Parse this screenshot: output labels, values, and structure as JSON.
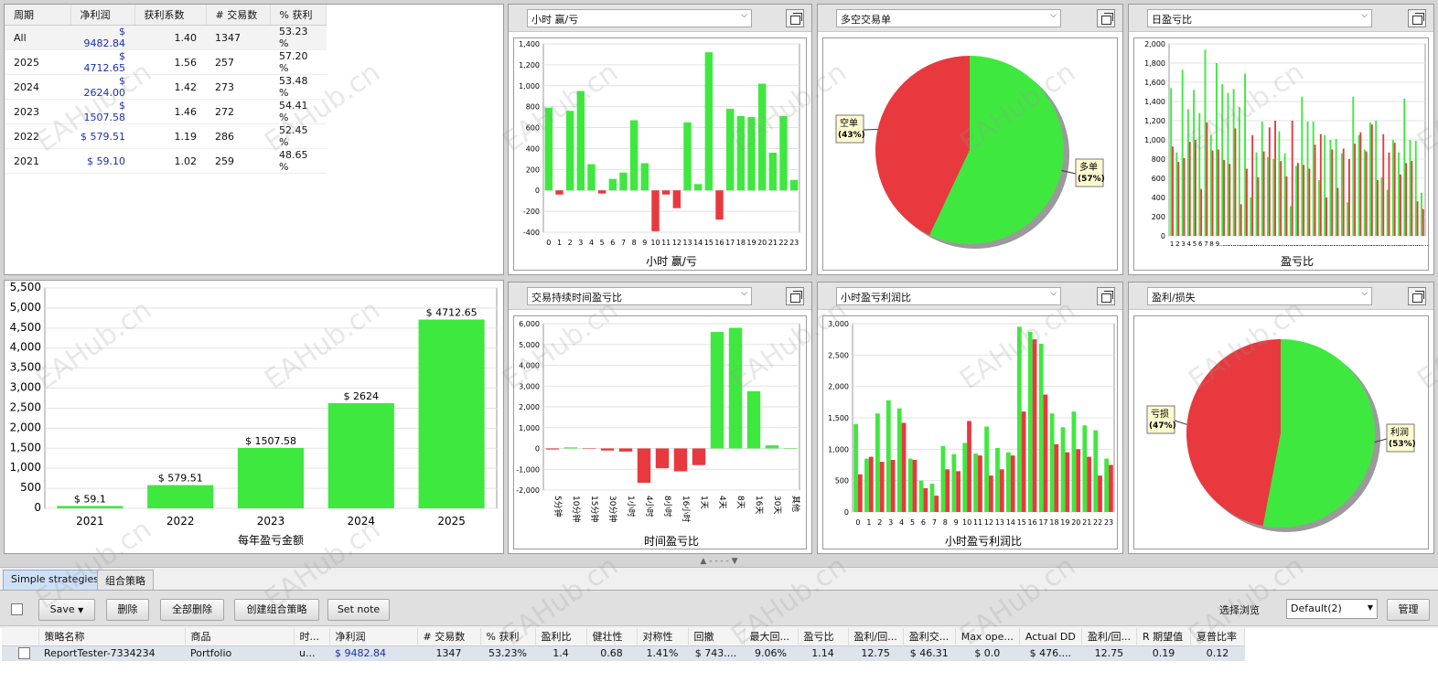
{
  "year_table": {
    "headers": [
      "周期",
      "净利润",
      "获利系数",
      "# 交易数",
      "% 获利"
    ],
    "rows": [
      [
        "All",
        "$ 9482.84",
        "1.40",
        "1347",
        "53.23 %"
      ],
      [
        "2025",
        "$ 4712.65",
        "1.56",
        "257",
        "57.20 %"
      ],
      [
        "2024",
        "$ 2624.00",
        "1.42",
        "273",
        "53.48 %"
      ],
      [
        "2023",
        "$ 1507.58",
        "1.46",
        "272",
        "54.41 %"
      ],
      [
        "2022",
        "$ 579.51",
        "1.19",
        "286",
        "52.45 %"
      ],
      [
        "2021",
        "$ 59.10",
        "1.02",
        "259",
        "48.65 %"
      ]
    ]
  },
  "panels": {
    "hourly": {
      "dropdown": "小时 赢/亏",
      "title": "小时 赢/亏"
    },
    "longshort": {
      "dropdown": "多空交易单"
    },
    "daily": {
      "dropdown": "日盈亏比",
      "title": "盈亏比"
    },
    "duration": {
      "dropdown": "交易持续时间盈亏比",
      "title": "时间盈亏比"
    },
    "hourly_pf": {
      "dropdown": "小时盈亏利润比",
      "title": "小时盈亏利润比"
    },
    "profit_loss": {
      "dropdown": "盈利/损失"
    },
    "yearly": {
      "title": "每年盈亏金额"
    }
  },
  "chart_data": [
    {
      "type": "bar",
      "title": "小时 赢/亏",
      "categories": [
        "0",
        "1",
        "2",
        "3",
        "4",
        "5",
        "6",
        "7",
        "8",
        "9",
        "10",
        "11",
        "12",
        "13",
        "14",
        "15",
        "16",
        "17",
        "18",
        "19",
        "20",
        "21",
        "22",
        "23"
      ],
      "values": [
        790,
        -40,
        760,
        950,
        250,
        -30,
        110,
        170,
        670,
        260,
        -390,
        -40,
        -170,
        650,
        60,
        1320,
        -280,
        780,
        710,
        700,
        1020,
        360,
        710,
        100
      ],
      "ylim": [
        -400,
        1400
      ],
      "yticks": [
        -400,
        -200,
        0,
        200,
        400,
        600,
        800,
        1000,
        1200,
        1400
      ],
      "ytick_labels": [
        "-400",
        "-200",
        "0",
        "200",
        "400",
        "600",
        "800",
        "1,000",
        "1,200",
        "1,400"
      ]
    },
    {
      "type": "pie",
      "slices": [
        {
          "label": "空单",
          "pct_label": "(43%)",
          "value": 43,
          "color": "#e8393e"
        },
        {
          "label": "多单",
          "pct_label": "(57%)",
          "value": 57,
          "color": "#3fe83f"
        }
      ]
    },
    {
      "type": "bar",
      "title": "盈亏比",
      "categories": [
        "1",
        "2",
        "3",
        "4",
        "5",
        "6",
        "7",
        "8",
        "9",
        "......",
        "......",
        "......",
        "......",
        "......",
        "......",
        "......",
        "......",
        "......",
        "......",
        "......",
        "......",
        "......",
        "......",
        "......",
        "......",
        "......",
        "......",
        "......",
        "......",
        "......",
        "......",
        "......",
        "......",
        "......",
        "......",
        "......",
        "......",
        "......",
        "......",
        "......",
        "......",
        "......",
        "......",
        "......",
        "......"
      ],
      "series": [
        {
          "color": "#3fe83f",
          "values": [
            1540,
            870,
            1730,
            1320,
            1520,
            1280,
            1940,
            1050,
            1800,
            1580,
            1490,
            1530,
            1340,
            1690,
            400,
            870,
            1190,
            820,
            800,
            1090,
            860,
            310,
            730,
            1450,
            1190,
            1190,
            580,
            1050,
            1000,
            1010,
            860,
            350,
            1450,
            1050,
            900,
            1180,
            1200,
            610,
            480,
            1000,
            870,
            1430,
            1000,
            990,
            450
          ]
        },
        {
          "color": "#e8393e",
          "values": [
            930,
            770,
            810,
            980,
            1000,
            490,
            1180,
            890,
            900,
            790,
            750,
            1120,
            330,
            700,
            1050,
            610,
            880,
            1130,
            1200,
            780,
            620,
            1200,
            760,
            740,
            700,
            950,
            1060,
            400,
            900,
            500,
            910,
            800,
            960,
            1080,
            880,
            1160,
            580,
            1060,
            870,
            970,
            640,
            760,
            780,
            360,
            280
          ]
        }
      ],
      "ylim": [
        0,
        2000
      ],
      "yticks": [
        0,
        200,
        400,
        600,
        800,
        1000,
        1200,
        1400,
        1600,
        1800,
        2000
      ],
      "ytick_labels": [
        "0",
        "200",
        "400",
        "600",
        "800",
        "1,000",
        "1,200",
        "1,400",
        "1,600",
        "1,800",
        "2,000"
      ]
    },
    {
      "type": "bar",
      "title": "每年盈亏金额",
      "categories": [
        "2021",
        "2022",
        "2023",
        "2024",
        "2025"
      ],
      "values": [
        59.1,
        579.51,
        1507.58,
        2624,
        4712.65
      ],
      "value_labels": [
        "$ 59.1",
        "$ 579.51",
        "$ 1507.58",
        "$ 2624",
        "$ 4712.65"
      ],
      "ylim": [
        0,
        5500
      ],
      "yticks": [
        0,
        500,
        1000,
        1500,
        2000,
        2500,
        3000,
        3500,
        4000,
        4500,
        5000,
        5500
      ],
      "ytick_labels": [
        "0",
        "500",
        "1,000",
        "1,500",
        "2,000",
        "2,500",
        "3,000",
        "3,500",
        "4,000",
        "4,500",
        "5,000",
        "5,500"
      ]
    },
    {
      "type": "bar",
      "title": "时间盈亏比",
      "categories": [
        "5分钟",
        "10分钟",
        "15分钟",
        "30分钟",
        "1小时",
        "4小时",
        "8小时",
        "16小时",
        "1天",
        "4天",
        "8天",
        "16天",
        "30天",
        "其他"
      ],
      "values": [
        -50,
        50,
        -20,
        -100,
        -150,
        -1650,
        -950,
        -1100,
        -800,
        5600,
        5800,
        2750,
        150,
        0
      ],
      "ylim": [
        -2000,
        6000
      ],
      "yticks": [
        -2000,
        -1000,
        0,
        1000,
        2000,
        3000,
        4000,
        5000,
        6000
      ],
      "ytick_labels": [
        "-2,000",
        "-1,000",
        "0",
        "1,000",
        "2,000",
        "3,000",
        "4,000",
        "5,000",
        "6,000"
      ]
    },
    {
      "type": "bar",
      "title": "小时盈亏利润比",
      "categories": [
        "0",
        "1",
        "2",
        "3",
        "4",
        "5",
        "6",
        "7",
        "8",
        "9",
        "10",
        "11",
        "12",
        "13",
        "14",
        "15",
        "16",
        "17",
        "18",
        "19",
        "20",
        "21",
        "22",
        "23"
      ],
      "series": [
        {
          "color": "#3fe83f",
          "values": [
            1400,
            850,
            1570,
            1780,
            1650,
            850,
            500,
            450,
            1050,
            920,
            1100,
            930,
            1360,
            1020,
            950,
            2950,
            2870,
            2680,
            1570,
            1350,
            1600,
            1380,
            1300,
            850
          ]
        },
        {
          "color": "#e8393e",
          "values": [
            600,
            880,
            800,
            830,
            1420,
            830,
            380,
            260,
            680,
            650,
            1450,
            900,
            580,
            680,
            900,
            1600,
            2750,
            1870,
            1080,
            950,
            1000,
            880,
            580,
            750
          ]
        }
      ],
      "ylim": [
        0,
        3000
      ],
      "yticks": [
        0,
        500,
        1000,
        1500,
        2000,
        2500,
        3000
      ],
      "ytick_labels": [
        "0",
        "500",
        "1,000",
        "1,500",
        "2,000",
        "2,500",
        "3,000"
      ]
    },
    {
      "type": "pie",
      "slices": [
        {
          "label": "亏损",
          "pct_label": "(47%)",
          "value": 47,
          "color": "#e8393e"
        },
        {
          "label": "利润",
          "pct_label": "(53%)",
          "value": 53,
          "color": "#3fe83f"
        }
      ]
    }
  ],
  "tabs": [
    "Simple strategies",
    "组合策略"
  ],
  "toolbar": {
    "save": "Save",
    "delete": "删除",
    "delete_all": "全部删除",
    "create_combo": "创建组合策略",
    "set_note": "Set note",
    "browse_label": "选择浏览",
    "browse_value": "Default(2)",
    "manage": "管理"
  },
  "grid": {
    "headers": [
      "策略名称",
      "商品",
      "时...",
      "净利润",
      "# 交易数",
      "% 获利",
      "盈利比",
      "健壮性",
      "对称性",
      "回撤",
      "最大回...",
      "盈亏比",
      "盈利/回...",
      "盈利交...",
      "Max ope...",
      "Actual DD",
      "盈利/回...",
      "R 期望值",
      "夏普比率"
    ],
    "row": [
      "ReportTester-7334234",
      "Portfolio",
      "u...",
      "$ 9482.84",
      "1347",
      "53.23%",
      "1.4",
      "0.68",
      "1.41%",
      "$ 743....",
      "9.06%",
      "1.14",
      "12.75",
      "$ 46.31",
      "$ 0.0",
      "$ 476....",
      "12.75",
      "0.19",
      "0.12"
    ]
  },
  "watermark": "EAHub.cn",
  "colors": {
    "green": "#3fe83f",
    "red": "#e8393e",
    "blue_value": "#1a2fb0"
  }
}
